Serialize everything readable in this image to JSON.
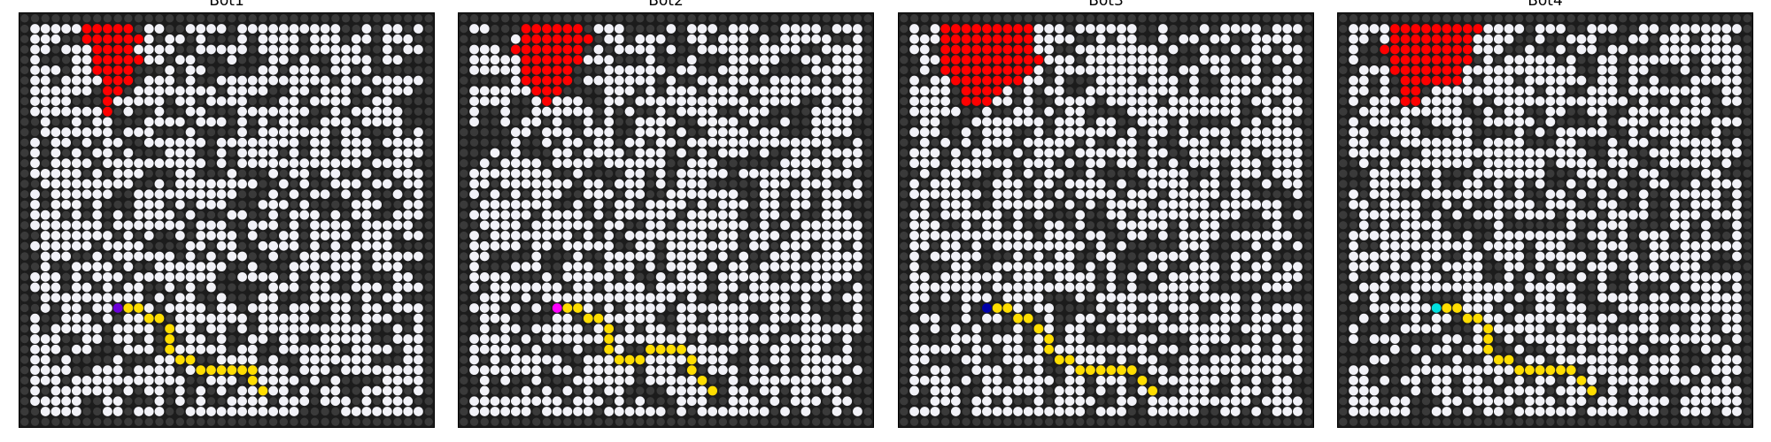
{
  "colors": {
    "wall": "#1c1c1c",
    "wall_dot": "#3a3a3a",
    "open": "#f2f2f8",
    "fire": "#ff0000",
    "path": "#ffdd00"
  },
  "grid_size": 40,
  "panels": [
    {
      "title": "Bot1",
      "bot_color": "#6a00d8"
    },
    {
      "title": "Bot2",
      "bot_color": "#ff00ff"
    },
    {
      "title": "Bot3",
      "bot_color": "#0000aa"
    },
    {
      "title": "Bot4",
      "bot_color": "#00e0e0"
    }
  ]
}
